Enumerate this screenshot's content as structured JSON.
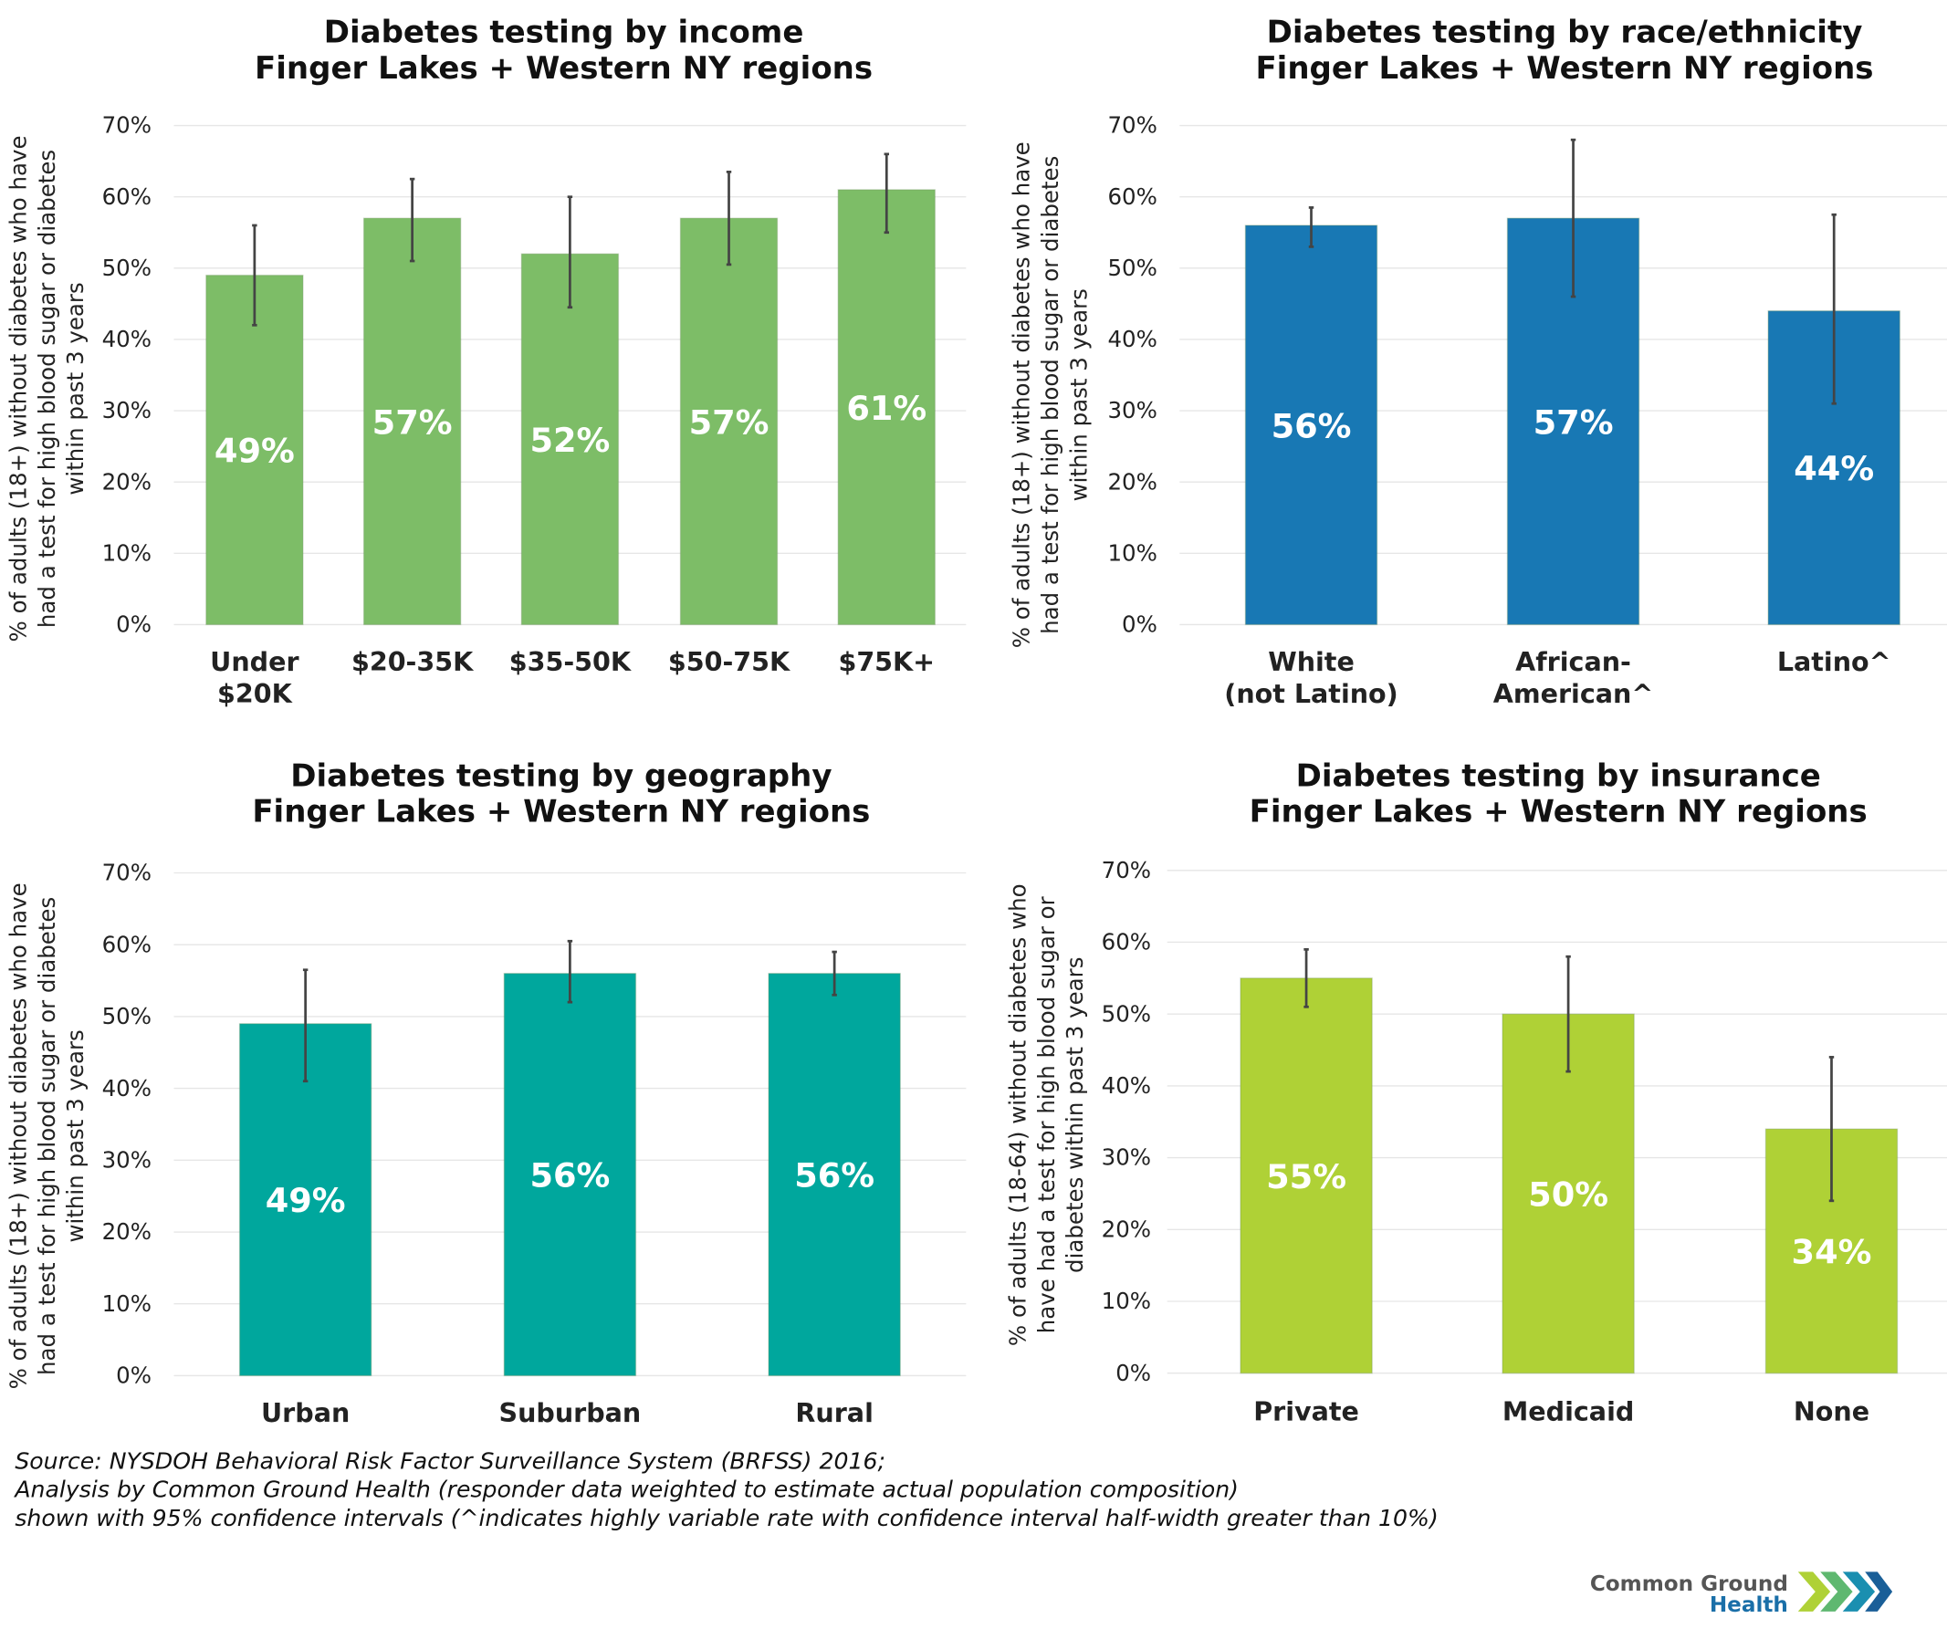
{
  "colors": {
    "income": "#7dbd67",
    "race": "#1878b4",
    "geography": "#00a79d",
    "insurance": "#afd136",
    "error_bar": "#444444"
  },
  "chart_data": [
    {
      "type": "bar",
      "title": [
        "Diabetes testing by income",
        "Finger Lakes + Western NY regions"
      ],
      "ylabel": [
        "% of adults (18+) without diabetes who have",
        "had a test for high blood sugar or diabetes",
        "within past 3 years"
      ],
      "ylim": [
        0,
        70
      ],
      "yticks": [
        "0%",
        "10%",
        "20%",
        "30%",
        "40%",
        "50%",
        "60%",
        "70%"
      ],
      "grid": true,
      "color_key": "income",
      "categories": [
        [
          "Under",
          "$20K"
        ],
        [
          "$20-35K"
        ],
        [
          "$35-50K"
        ],
        [
          "$50-75K"
        ],
        [
          "$75K+"
        ]
      ],
      "values": [
        49,
        57,
        52,
        57,
        61
      ],
      "value_labels": [
        "49%",
        "57%",
        "52%",
        "57%",
        "61%"
      ],
      "ci_low": [
        42,
        51,
        44.5,
        50.5,
        55
      ],
      "ci_high": [
        56,
        62.5,
        60,
        63.5,
        66
      ]
    },
    {
      "type": "bar",
      "title": [
        "Diabetes testing by race/ethnicity",
        "Finger Lakes + Western NY regions"
      ],
      "ylabel": [
        "% of adults (18+) without diabetes who have",
        "had a test for high blood sugar or diabetes",
        "within past 3 years"
      ],
      "ylim": [
        0,
        70
      ],
      "yticks": [
        "0%",
        "10%",
        "20%",
        "30%",
        "40%",
        "50%",
        "60%",
        "70%"
      ],
      "grid": true,
      "color_key": "race",
      "categories": [
        [
          "White",
          "(not Latino)"
        ],
        [
          "African-",
          "American^"
        ],
        [
          "Latino^"
        ]
      ],
      "values": [
        56,
        57,
        44
      ],
      "value_labels": [
        "56%",
        "57%",
        "44%"
      ],
      "ci_low": [
        53,
        46,
        31
      ],
      "ci_high": [
        58.5,
        68,
        57.5
      ]
    },
    {
      "type": "bar",
      "title": [
        "Diabetes testing by geography",
        "Finger Lakes + Western NY regions"
      ],
      "ylabel": [
        "% of adults (18+) without diabetes who have",
        "had a test for high blood sugar or diabetes",
        "within past 3 years"
      ],
      "ylim": [
        0,
        70
      ],
      "yticks": [
        "0%",
        "10%",
        "20%",
        "30%",
        "40%",
        "50%",
        "60%",
        "70%"
      ],
      "grid": true,
      "color_key": "geography",
      "categories": [
        [
          "Urban"
        ],
        [
          "Suburban"
        ],
        [
          "Rural"
        ]
      ],
      "values": [
        49,
        56,
        56
      ],
      "value_labels": [
        "49%",
        "56%",
        "56%"
      ],
      "ci_low": [
        41,
        52,
        53
      ],
      "ci_high": [
        56.5,
        60.5,
        59
      ]
    },
    {
      "type": "bar",
      "title": [
        "Diabetes testing by insurance",
        "Finger Lakes + Western NY regions"
      ],
      "ylabel": [
        "% of adults (18-64) without diabetes who",
        "have had a test for high blood sugar or",
        "diabetes within past 3 years"
      ],
      "ylim": [
        0,
        70
      ],
      "yticks": [
        "0%",
        "10%",
        "20%",
        "30%",
        "40%",
        "50%",
        "60%",
        "70%"
      ],
      "grid": true,
      "color_key": "insurance",
      "categories": [
        [
          "Private"
        ],
        [
          "Medicaid"
        ],
        [
          "None"
        ]
      ],
      "values": [
        55,
        50,
        34
      ],
      "value_labels": [
        "55%",
        "50%",
        "34%"
      ],
      "ci_low": [
        51,
        42,
        24
      ],
      "ci_high": [
        59,
        58,
        44
      ]
    }
  ],
  "source": [
    "Source: NYSDOH Behavioral Risk Factor Surveillance System (BRFSS) 2016;",
    "Analysis by Common Ground Health (responder data weighted to estimate actual population composition)",
    "shown with 95% confidence intervals (^indicates highly variable rate with confidence interval half-width greater than 10%)"
  ],
  "logo": {
    "line1": "Common Ground",
    "line2": "Health"
  }
}
